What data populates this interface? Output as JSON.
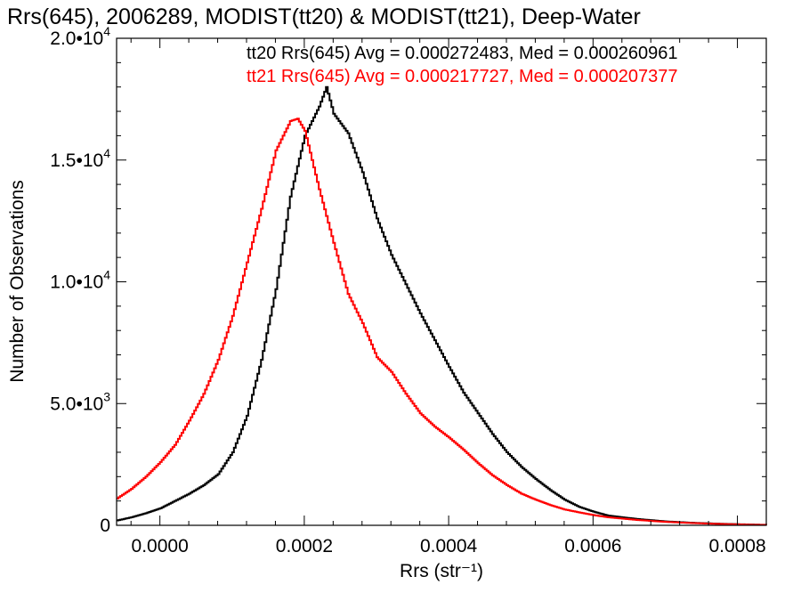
{
  "chart_data": {
    "type": "line",
    "title": "Rrs(645), 2006289, MODIST(tt20) & MODIST(tt21), Deep-Water",
    "xlabel": "Rrs (str⁻¹)",
    "ylabel": "Number of Observations",
    "xlim": [
      -6e-05,
      0.00084
    ],
    "ylim": [
      0,
      20000
    ],
    "x_ticks": [
      0.0,
      0.0002,
      0.0004,
      0.0006,
      0.0008
    ],
    "x_tick_labels": [
      "0.0000",
      "0.0002",
      "0.0004",
      "0.0006",
      "0.0008"
    ],
    "y_ticks": [
      0,
      5000,
      10000,
      15000,
      20000
    ],
    "y_tick_labels": [
      {
        "mantissa": "0",
        "exp": ""
      },
      {
        "mantissa": "5.0•10",
        "exp": "3"
      },
      {
        "mantissa": "1.0•10",
        "exp": "4"
      },
      {
        "mantissa": "1.5•10",
        "exp": "4"
      },
      {
        "mantissa": "2.0•10",
        "exp": "4"
      }
    ],
    "grid": false,
    "legend_position": "top-right",
    "series": [
      {
        "name": "tt20",
        "color": "#000000",
        "legend_text": "tt20 Rrs(645) Avg = 0.000272483, Med = 0.000260961",
        "x": [
          -6e-05,
          -4e-05,
          -2e-05,
          0.0,
          2e-05,
          4e-05,
          6e-05,
          8e-05,
          0.0001,
          0.00012,
          0.00014,
          0.00016,
          0.00018,
          0.0002,
          0.00022,
          0.00023,
          0.00024,
          0.00026,
          0.00028,
          0.0003,
          0.00032,
          0.00034,
          0.00036,
          0.00038,
          0.0004,
          0.00042,
          0.00044,
          0.00046,
          0.00048,
          0.0005,
          0.00052,
          0.00054,
          0.00056,
          0.00058,
          0.0006,
          0.00062,
          0.00066,
          0.0007,
          0.00074,
          0.00078,
          0.00082,
          0.00084
        ],
        "y": [
          200,
          330,
          500,
          700,
          1000,
          1300,
          1650,
          2100,
          3000,
          4500,
          6800,
          9700,
          13500,
          16000,
          17200,
          18000,
          16900,
          16100,
          14500,
          12600,
          11100,
          9900,
          8700,
          7600,
          6500,
          5450,
          4600,
          3750,
          3000,
          2400,
          1900,
          1450,
          1050,
          760,
          560,
          400,
          260,
          160,
          100,
          60,
          30,
          20
        ]
      },
      {
        "name": "tt21",
        "color": "#ff0000",
        "legend_text": "tt21 Rrs(645) Avg = 0.000217727, Med = 0.000207377",
        "x": [
          -6e-05,
          -4e-05,
          -2e-05,
          0.0,
          2e-05,
          4e-05,
          6e-05,
          8e-05,
          0.0001,
          0.00012,
          0.00014,
          0.00016,
          0.00018,
          0.00019,
          0.0002,
          0.00022,
          0.00024,
          0.00026,
          0.00028,
          0.0003,
          0.00032,
          0.00034,
          0.00036,
          0.00038,
          0.0004,
          0.00042,
          0.00044,
          0.00046,
          0.00048,
          0.0005,
          0.00052,
          0.00054,
          0.00056,
          0.00058,
          0.0006,
          0.00062,
          0.00066,
          0.0007,
          0.00074,
          0.00078,
          0.00082,
          0.00084
        ],
        "y": [
          1100,
          1500,
          2000,
          2600,
          3300,
          4300,
          5400,
          6800,
          8600,
          10800,
          13000,
          15400,
          16600,
          16700,
          16200,
          13800,
          11600,
          9500,
          8300,
          6900,
          6300,
          5400,
          4600,
          4050,
          3600,
          3100,
          2550,
          2050,
          1650,
          1300,
          1050,
          830,
          650,
          530,
          420,
          330,
          220,
          140,
          90,
          50,
          25,
          15
        ]
      }
    ]
  }
}
